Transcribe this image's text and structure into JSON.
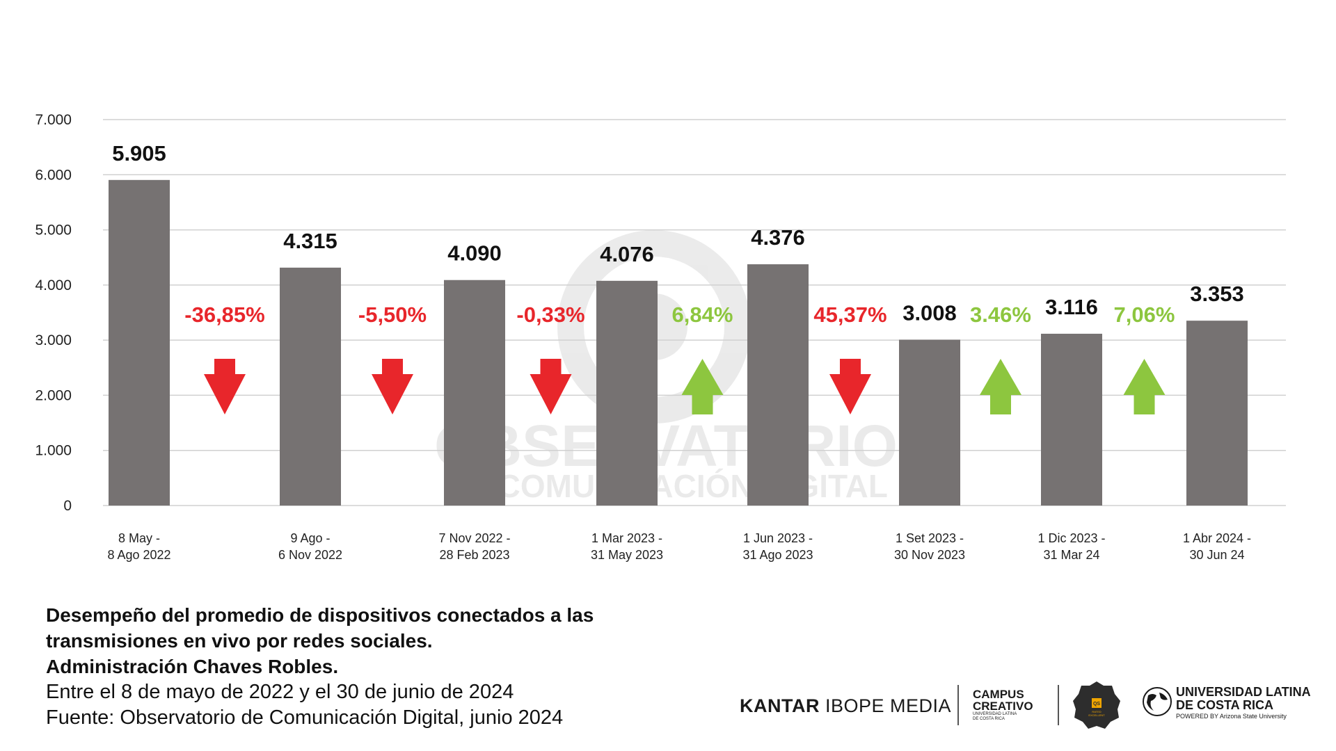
{
  "chart_data": {
    "type": "bar",
    "categories": [
      [
        "8 May -",
        "8 Ago 2022"
      ],
      [
        "9 Ago -",
        "6 Nov 2022"
      ],
      [
        "7 Nov 2022 -",
        "28 Feb 2023"
      ],
      [
        "1 Mar 2023 -",
        "31 May 2023"
      ],
      [
        "1 Jun 2023 -",
        "31 Ago 2023"
      ],
      [
        "1 Set 2023 -",
        "30 Nov 2023"
      ],
      [
        "1 Dic 2023 -",
        "31 Mar 24"
      ],
      [
        "1 Abr 2024 -",
        "30 Jun 24"
      ]
    ],
    "values": [
      5905,
      4315,
      4090,
      4076,
      4376,
      3008,
      3116,
      3353
    ],
    "value_labels": [
      "5.905",
      "4.315",
      "4.090",
      "4.076",
      "4.376",
      "3.008",
      "3.116",
      "3.353"
    ],
    "ylim": [
      0,
      7000
    ],
    "yticks": [
      0,
      1000,
      2000,
      3000,
      4000,
      5000,
      6000,
      7000
    ],
    "ytick_labels": [
      "0",
      "1.000",
      "2.000",
      "3.000",
      "4.000",
      "5.000",
      "6.000",
      "7.000"
    ],
    "grid": true,
    "bar_color": "#767272",
    "changes": [
      {
        "label": "-36,85%",
        "direction": "down"
      },
      {
        "label": "-5,50%",
        "direction": "down"
      },
      {
        "label": "-0,33%",
        "direction": "down"
      },
      {
        "label": "6,84%",
        "direction": "up"
      },
      {
        "label": "45,37%",
        "direction": "down"
      },
      {
        "label": "3.46%",
        "direction": "up"
      },
      {
        "label": "7,06%",
        "direction": "up"
      }
    ],
    "colors": {
      "down": "#e8262b",
      "up": "#8dc63f"
    },
    "watermark": [
      "OBSERVATORIO",
      "DE COMUNICACIÓN DIGITAL"
    ]
  },
  "caption": {
    "bold_lines": [
      "Desempeño del promedio de dispositivos conectados a las",
      "transmisiones en vivo por redes sociales.",
      "Administración Chaves Robles."
    ],
    "lines": [
      "Entre el 8 de mayo de 2022 y el 30 de junio de 2024",
      "Fuente: Observatorio de Comunicación Digital, junio 2024"
    ]
  },
  "logos": {
    "kantar_bold": "KANTAR",
    "kantar_rest": " IBOPE MEDIA",
    "campus": [
      "CAMPUS",
      "CREATIVO"
    ],
    "campus_sub": [
      "UNIVERSIDAD LATINA",
      "DE COSTA RICA"
    ],
    "badge": [
      "QS",
      "RATED",
      "EXCELLENT"
    ],
    "ulatina": [
      "UNIVERSIDAD LATINA",
      "DE COSTA RICA"
    ],
    "ulatina_sub": "POWERED BY Arizona State University"
  }
}
